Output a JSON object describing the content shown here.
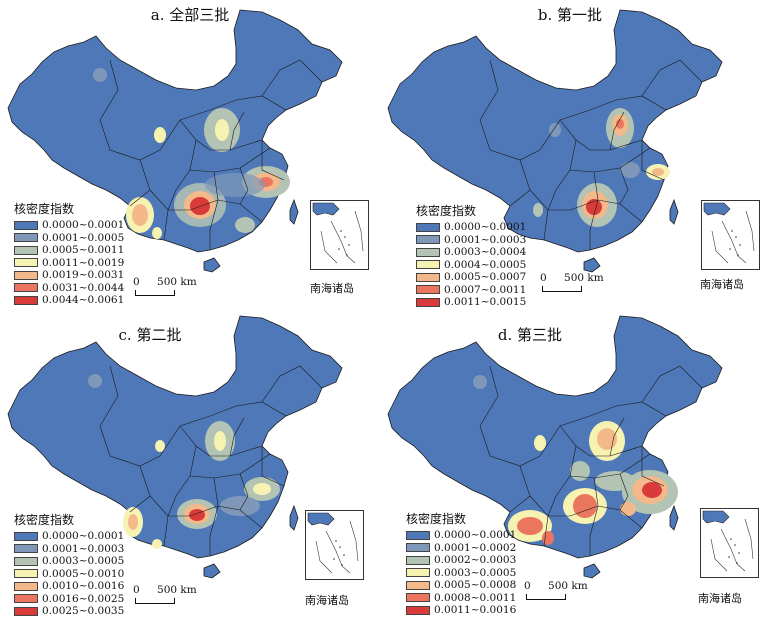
{
  "panels": [
    {
      "title": "a. 全部三批",
      "legend_title": "核密度指数",
      "legend": [
        {
          "label": "0.0000~0.0001",
          "color": "#4f78b8"
        },
        {
          "label": "0.0001~0.0005",
          "color": "#7f98b9"
        },
        {
          "label": "0.0005~0.0011",
          "color": "#b3c3b4"
        },
        {
          "label": "0.0011~0.0019",
          "color": "#f6f2b2"
        },
        {
          "label": "0.0019~0.0031",
          "color": "#f4b98a"
        },
        {
          "label": "0.0031~0.0044",
          "color": "#ea7660"
        },
        {
          "label": "0.0044~0.0061",
          "color": "#d93a3a"
        }
      ]
    },
    {
      "title": "b. 第一批",
      "legend_title": "核密度指数",
      "legend": [
        {
          "label": "0.0000~0.0001",
          "color": "#4f78b8"
        },
        {
          "label": "0.0001~0.0003",
          "color": "#7f98b9"
        },
        {
          "label": "0.0003~0.0004",
          "color": "#b3c3b4"
        },
        {
          "label": "0.0004~0.0005",
          "color": "#f6f2b2"
        },
        {
          "label": "0.0005~0.0007",
          "color": "#f4b98a"
        },
        {
          "label": "0.0007~0.0011",
          "color": "#ea7660"
        },
        {
          "label": "0.0011~0.0015",
          "color": "#d93a3a"
        }
      ]
    },
    {
      "title": "c. 第二批",
      "legend_title": "核密度指数",
      "legend": [
        {
          "label": "0.0000~0.0001",
          "color": "#4f78b8"
        },
        {
          "label": "0.0001~0.0003",
          "color": "#7f98b9"
        },
        {
          "label": "0.0003~0.0005",
          "color": "#b3c3b4"
        },
        {
          "label": "0.0005~0.0010",
          "color": "#f6f2b2"
        },
        {
          "label": "0.0010~0.0016",
          "color": "#f4b98a"
        },
        {
          "label": "0.0016~0.0025",
          "color": "#ea7660"
        },
        {
          "label": "0.0025~0.0035",
          "color": "#d93a3a"
        }
      ]
    },
    {
      "title": "d. 第三批",
      "legend_title": "核密度指数",
      "legend": [
        {
          "label": "0.0000~0.0001",
          "color": "#4f78b8"
        },
        {
          "label": "0.0001~0.0002",
          "color": "#7f98b9"
        },
        {
          "label": "0.0002~0.0003",
          "color": "#b3c3b4"
        },
        {
          "label": "0.0003~0.0005",
          "color": "#f6f2b2"
        },
        {
          "label": "0.0005~0.0008",
          "color": "#f4b98a"
        },
        {
          "label": "0.0008~0.0011",
          "color": "#ea7660"
        },
        {
          "label": "0.0011~0.0016",
          "color": "#d93a3a"
        }
      ]
    }
  ],
  "scale": {
    "zero": "0",
    "label": "500 km"
  },
  "inset_label": "南海诸岛",
  "colors": {
    "base": "#4f78b8",
    "border": "#222222"
  }
}
